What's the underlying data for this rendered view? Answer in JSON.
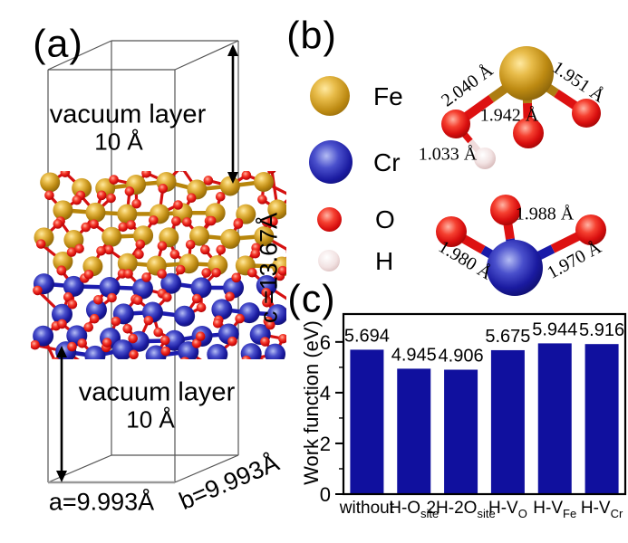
{
  "panels": {
    "a": "(a)",
    "b": "(b)",
    "c": "(c)"
  },
  "panel_a": {
    "vacuum_top": {
      "line1": "vacuum layer",
      "line2": "10 Å"
    },
    "vacuum_bottom": {
      "line1": "vacuum layer",
      "line2": "10 Å"
    },
    "a_label": "a=9.993Å",
    "b_label": "b=9.993Å",
    "c_label": "c =13.67Å"
  },
  "legend": {
    "items": [
      {
        "symbol": "Fe",
        "color": "#bd8a12"
      },
      {
        "symbol": "Cr",
        "color": "#1a1aa0"
      },
      {
        "symbol": "O",
        "color": "#d90f0f"
      },
      {
        "symbol": "H",
        "color": "#f2e2e2"
      }
    ]
  },
  "molecules": {
    "fe": {
      "bond_labels": [
        "2.040 Å",
        "1.942 Å",
        "1.951 Å"
      ],
      "oh_label": "1.033 Å"
    },
    "cr": {
      "bond_labels": [
        "1.980 Å",
        "1.988 Å",
        "1.970 Å"
      ]
    }
  },
  "chart_data": {
    "type": "bar",
    "categories": [
      "without",
      "H-Osite",
      "2H-2Osite",
      "H-VO",
      "H-VFe",
      "H-VCr"
    ],
    "categories_rich": [
      {
        "main": "without",
        "sub": ""
      },
      {
        "main": "H-O",
        "sub": "site"
      },
      {
        "main": "2H-2O",
        "sub": "site"
      },
      {
        "main": "H-V",
        "sub": "O"
      },
      {
        "main": "H-V",
        "sub": "Fe"
      },
      {
        "main": "H-V",
        "sub": "Cr"
      }
    ],
    "values": [
      5.694,
      4.945,
      4.906,
      5.675,
      5.944,
      5.916
    ],
    "value_labels": [
      "5.694",
      "4.945",
      "4.906",
      "5.675",
      "5.944",
      "5.916"
    ],
    "title": "",
    "xlabel": "",
    "ylabel": "Work function (eV)",
    "ylim": [
      0,
      7.1
    ],
    "yticks": [
      0,
      2,
      4,
      6
    ],
    "yminor": [
      1,
      3,
      5
    ],
    "grid": false,
    "legend_position": "none",
    "bar_color": "#10109e"
  },
  "colors": {
    "fe_bond": "#b8860b",
    "cr_bond": "#1c1cae",
    "o_bond": "#d51010",
    "h_bond": "#f0dcdc",
    "frame": "#000000",
    "cell_line": "#555555"
  }
}
